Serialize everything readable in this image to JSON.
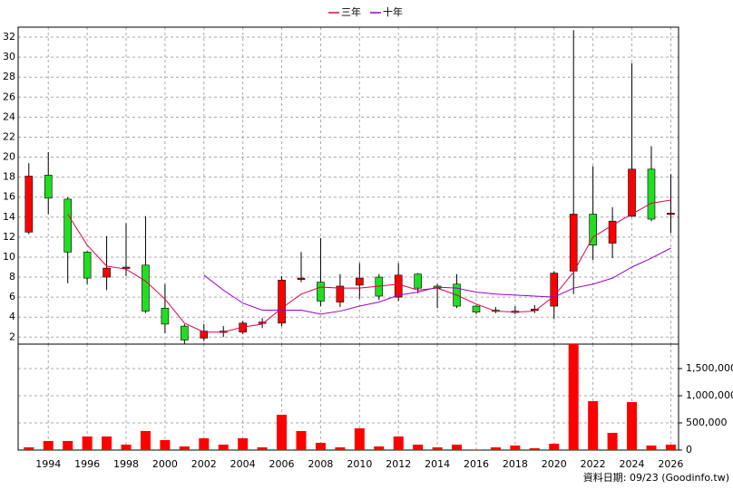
{
  "chart_data": [
    {
      "type": "candlestick",
      "x": [
        1993,
        1994,
        1995,
        1996,
        1997,
        1998,
        1999,
        2000,
        2001,
        2002,
        2003,
        2004,
        2005,
        2006,
        2007,
        2008,
        2009,
        2010,
        2011,
        2012,
        2013,
        2014,
        2015,
        2016,
        2017,
        2018,
        2019,
        2020,
        2021,
        2022,
        2023,
        2024,
        2025,
        2026
      ],
      "open": [
        12.5,
        18.2,
        15.8,
        10.5,
        8.0,
        8.9,
        9.2,
        4.9,
        3.1,
        1.9,
        2.5,
        2.5,
        3.4,
        3.4,
        7.8,
        7.5,
        5.5,
        7.2,
        8.0,
        6.0,
        8.3,
        7.1,
        7.3,
        5.1,
        4.7,
        4.6,
        4.7,
        5.1,
        8.6,
        14.3,
        11.4,
        14.1,
        18.8,
        14.3
      ],
      "high": [
        19.4,
        20.5,
        16.0,
        10.6,
        12.1,
        13.4,
        14.1,
        7.3,
        3.3,
        3.3,
        3.1,
        3.6,
        3.9,
        8.1,
        10.5,
        11.9,
        8.3,
        9.4,
        8.3,
        9.4,
        8.4,
        7.3,
        8.3,
        5.2,
        5.0,
        5.1,
        5.2,
        8.6,
        32.7,
        19.1,
        15.0,
        29.4,
        21.1,
        18.3
      ],
      "low": [
        12.3,
        14.3,
        7.4,
        7.3,
        6.7,
        8.1,
        4.4,
        2.4,
        1.3,
        1.6,
        2.0,
        2.3,
        2.9,
        3.1,
        7.5,
        5.1,
        5.0,
        5.8,
        5.7,
        5.6,
        6.4,
        4.9,
        4.9,
        4.3,
        4.4,
        4.3,
        4.4,
        3.8,
        6.3,
        9.7,
        9.9,
        14.0,
        13.6,
        12.4
      ],
      "close": [
        18.1,
        15.9,
        10.5,
        7.9,
        8.9,
        9.0,
        4.6,
        3.3,
        1.7,
        2.6,
        2.6,
        3.4,
        3.5,
        7.7,
        7.9,
        5.6,
        7.1,
        7.9,
        6.1,
        8.2,
        6.9,
        6.9,
        5.1,
        4.5,
        4.6,
        4.5,
        4.8,
        8.4,
        14.3,
        11.2,
        13.6,
        18.8,
        13.8,
        14.4
      ],
      "up_color": "#ff0000",
      "down_color": "#22dd22",
      "series": [
        {
          "name": "三年",
          "color": "#e0004a",
          "values": [
            null,
            null,
            14.3,
            11.2,
            9.1,
            8.8,
            7.6,
            5.8,
            3.4,
            2.5,
            2.5,
            3.0,
            3.3,
            4.9,
            6.3,
            7.0,
            6.9,
            6.9,
            7.1,
            7.3,
            6.7,
            6.9,
            6.2,
            5.3,
            4.6,
            4.5,
            4.6,
            6.1,
            8.5,
            12.0,
            13.2,
            14.3,
            15.4,
            15.7
          ]
        },
        {
          "name": "十年",
          "color": "#9900cc",
          "values": [
            null,
            null,
            null,
            null,
            null,
            null,
            null,
            null,
            null,
            8.2,
            6.7,
            5.4,
            4.7,
            4.7,
            4.7,
            4.3,
            4.6,
            5.1,
            5.5,
            6.2,
            6.5,
            7.0,
            6.9,
            6.5,
            6.3,
            6.2,
            6.1,
            6.0,
            6.9,
            7.3,
            7.9,
            9.0,
            9.9,
            10.9
          ]
        }
      ],
      "xlim": [
        1992.45,
        2026.4
      ],
      "xticks": [
        1994,
        1996,
        1998,
        2000,
        2002,
        2004,
        2006,
        2008,
        2010,
        2012,
        2014,
        2016,
        2018,
        2020,
        2022,
        2024,
        2026
      ],
      "ylim": [
        1.3,
        33
      ],
      "yticks": [
        2,
        4,
        6,
        8,
        10,
        12,
        14,
        16,
        18,
        20,
        22,
        24,
        26,
        28,
        30,
        32
      ],
      "grid": true
    },
    {
      "type": "bar",
      "x": [
        1993,
        1994,
        1995,
        1996,
        1997,
        1998,
        1999,
        2000,
        2001,
        2002,
        2003,
        2004,
        2005,
        2006,
        2007,
        2008,
        2009,
        2010,
        2011,
        2012,
        2013,
        2014,
        2015,
        2016,
        2017,
        2018,
        2019,
        2020,
        2021,
        2022,
        2023,
        2024,
        2025,
        2026
      ],
      "values": [
        50000,
        167000,
        167000,
        250000,
        250000,
        100000,
        350000,
        183000,
        67000,
        217000,
        100000,
        217000,
        50000,
        650000,
        350000,
        133000,
        50000,
        400000,
        67000,
        250000,
        100000,
        50000,
        100000,
        5000,
        50000,
        83000,
        33000,
        117000,
        1950000,
        900000,
        317000,
        883000,
        83000,
        100000
      ],
      "color": "#ff0000",
      "xlim": [
        1992.45,
        2026.4
      ],
      "xticks": [
        1994,
        1996,
        1998,
        2000,
        2002,
        2004,
        2006,
        2008,
        2010,
        2012,
        2014,
        2016,
        2018,
        2020,
        2022,
        2024,
        2026
      ],
      "ylim": [
        0,
        1950000
      ],
      "yticks": [
        0,
        {
          "value": 500000,
          "label": "500,000"
        },
        {
          "value": 1000000,
          "label": "1,000,000"
        },
        {
          "value": 1500000,
          "label": "1,500,000"
        }
      ],
      "grid": true
    }
  ],
  "footer": "資料日期: 09/23 (Goodinfo.tw)"
}
